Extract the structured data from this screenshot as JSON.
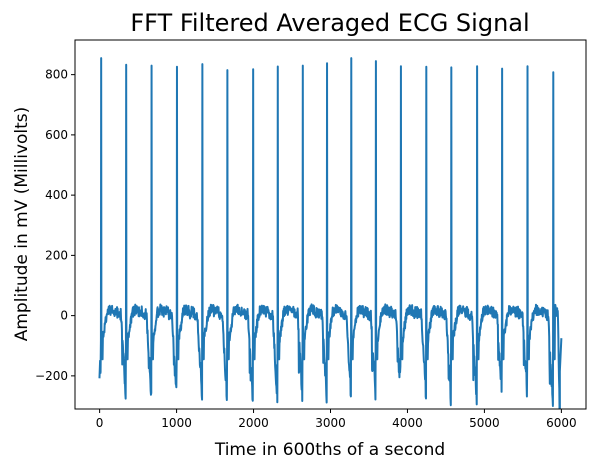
{
  "chart_data": {
    "type": "line",
    "title": "FFT Filtered Averaged ECG Signal",
    "xlabel": "Time in 600ths of a second",
    "ylabel": "Amplitude in mV (Millivolts)",
    "xlim": [
      -320,
      6320
    ],
    "ylim": [
      -310,
      915
    ],
    "xticks": [
      0,
      1000,
      2000,
      3000,
      4000,
      5000,
      6000
    ],
    "yticks": [
      -200,
      0,
      200,
      400,
      600,
      800
    ],
    "grid": false,
    "legend": "none",
    "series": [
      {
        "color": "#1f77b4",
        "beat_times": [
          20,
          345,
          675,
          1005,
          1335,
          1660,
          1995,
          2315,
          2640,
          2955,
          3270,
          3590,
          3915,
          4245,
          4570,
          4905,
          5230,
          5560,
          5895
        ],
        "r_peaks": [
          855,
          833,
          830,
          826,
          835,
          815,
          818,
          827,
          830,
          838,
          855,
          845,
          828,
          826,
          824,
          828,
          820,
          828,
          808
        ],
        "s_troughs": [
          -215,
          -210,
          -212,
          -222,
          -226,
          -232,
          -234,
          -220,
          -218,
          -210,
          -214,
          -220,
          -212,
          -242,
          -228,
          -218,
          -216,
          -248,
          -252
        ],
        "x_end": 6000,
        "end_value": -75
      }
    ]
  }
}
